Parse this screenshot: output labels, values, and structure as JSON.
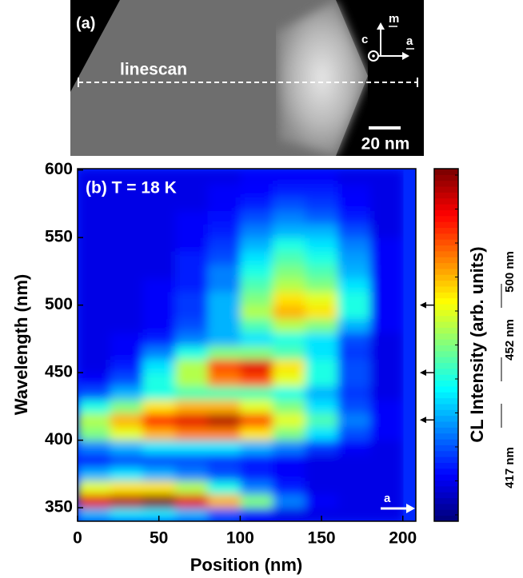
{
  "panel_a": {
    "label": "(a)",
    "linescan": "linescan",
    "scale_bar": "20 nm",
    "axes": {
      "m": "m",
      "c": "c",
      "a": "a"
    }
  },
  "chart_data": {
    "type": "heatmap",
    "panel_label": "(b) T = 18 K",
    "direction_label": "a",
    "xlabel": "Position (nm)",
    "ylabel": "Wavelength (nm)",
    "colorbar_label": "CL Intensity (arb. units)",
    "xlim": [
      0,
      208
    ],
    "ylim": [
      340,
      601
    ],
    "xticks": [
      0,
      50,
      100,
      150,
      200
    ],
    "yticks": [
      350,
      400,
      450,
      500,
      550,
      600
    ],
    "zlim": [
      0,
      1
    ],
    "xbins": [
      0,
      20,
      40,
      60,
      80,
      100,
      120,
      140,
      160,
      180,
      200
    ],
    "ybins": [
      340,
      350,
      360,
      370,
      380,
      390,
      400,
      410,
      420,
      430,
      440,
      450,
      460,
      470,
      480,
      490,
      500,
      510,
      520,
      530,
      540,
      550,
      560,
      570,
      580,
      590,
      600
    ],
    "z": [
      [
        0.3,
        0.35,
        0.35,
        0.3,
        0.2,
        0.12,
        0.1,
        0.1,
        0.1,
        0.1
      ],
      [
        0.9,
        0.95,
        1.0,
        0.9,
        0.7,
        0.5,
        0.25,
        0.12,
        0.1,
        0.1
      ],
      [
        0.6,
        0.65,
        0.65,
        0.55,
        0.4,
        0.25,
        0.15,
        0.1,
        0.1,
        0.1
      ],
      [
        0.3,
        0.35,
        0.3,
        0.25,
        0.2,
        0.15,
        0.12,
        0.1,
        0.1,
        0.1
      ],
      [
        0.15,
        0.2,
        0.2,
        0.2,
        0.18,
        0.15,
        0.12,
        0.1,
        0.1,
        0.1
      ],
      [
        0.25,
        0.3,
        0.35,
        0.35,
        0.35,
        0.3,
        0.25,
        0.18,
        0.12,
        0.1
      ],
      [
        0.5,
        0.6,
        0.7,
        0.75,
        0.75,
        0.65,
        0.5,
        0.35,
        0.2,
        0.12
      ],
      [
        0.55,
        0.7,
        0.85,
        0.9,
        0.95,
        0.8,
        0.6,
        0.45,
        0.25,
        0.12
      ],
      [
        0.4,
        0.5,
        0.65,
        0.7,
        0.7,
        0.6,
        0.5,
        0.35,
        0.2,
        0.12
      ],
      [
        0.2,
        0.3,
        0.4,
        0.45,
        0.45,
        0.45,
        0.4,
        0.3,
        0.18,
        0.1
      ],
      [
        0.12,
        0.2,
        0.4,
        0.55,
        0.75,
        0.8,
        0.6,
        0.4,
        0.2,
        0.1
      ],
      [
        0.1,
        0.15,
        0.35,
        0.55,
        0.8,
        0.9,
        0.65,
        0.4,
        0.2,
        0.1
      ],
      [
        0.1,
        0.12,
        0.25,
        0.4,
        0.5,
        0.5,
        0.45,
        0.35,
        0.18,
        0.1
      ],
      [
        0.1,
        0.12,
        0.15,
        0.25,
        0.3,
        0.35,
        0.4,
        0.35,
        0.2,
        0.1
      ],
      [
        0.1,
        0.1,
        0.12,
        0.2,
        0.3,
        0.45,
        0.55,
        0.5,
        0.3,
        0.12
      ],
      [
        0.1,
        0.1,
        0.12,
        0.18,
        0.3,
        0.55,
        0.7,
        0.65,
        0.4,
        0.12
      ],
      [
        0.1,
        0.1,
        0.12,
        0.18,
        0.3,
        0.5,
        0.65,
        0.6,
        0.4,
        0.12
      ],
      [
        0.1,
        0.1,
        0.12,
        0.15,
        0.25,
        0.45,
        0.55,
        0.5,
        0.35,
        0.12
      ],
      [
        0.1,
        0.1,
        0.1,
        0.15,
        0.25,
        0.4,
        0.5,
        0.45,
        0.3,
        0.12
      ],
      [
        0.1,
        0.1,
        0.1,
        0.15,
        0.2,
        0.35,
        0.45,
        0.4,
        0.28,
        0.12
      ],
      [
        0.1,
        0.1,
        0.1,
        0.12,
        0.18,
        0.3,
        0.4,
        0.35,
        0.25,
        0.12
      ],
      [
        0.1,
        0.1,
        0.1,
        0.12,
        0.15,
        0.25,
        0.3,
        0.3,
        0.2,
        0.1
      ],
      [
        0.1,
        0.1,
        0.1,
        0.12,
        0.14,
        0.2,
        0.25,
        0.22,
        0.15,
        0.1
      ],
      [
        0.1,
        0.1,
        0.1,
        0.1,
        0.12,
        0.15,
        0.2,
        0.18,
        0.13,
        0.1
      ],
      [
        0.1,
        0.1,
        0.1,
        0.1,
        0.12,
        0.13,
        0.15,
        0.15,
        0.12,
        0.1
      ],
      [
        0.1,
        0.1,
        0.1,
        0.1,
        0.1,
        0.12,
        0.12,
        0.12,
        0.1,
        0.1
      ]
    ],
    "arrows": [
      500,
      450,
      415
    ],
    "annotations": [
      "500 nm",
      "452 nm",
      "417 nm"
    ]
  }
}
